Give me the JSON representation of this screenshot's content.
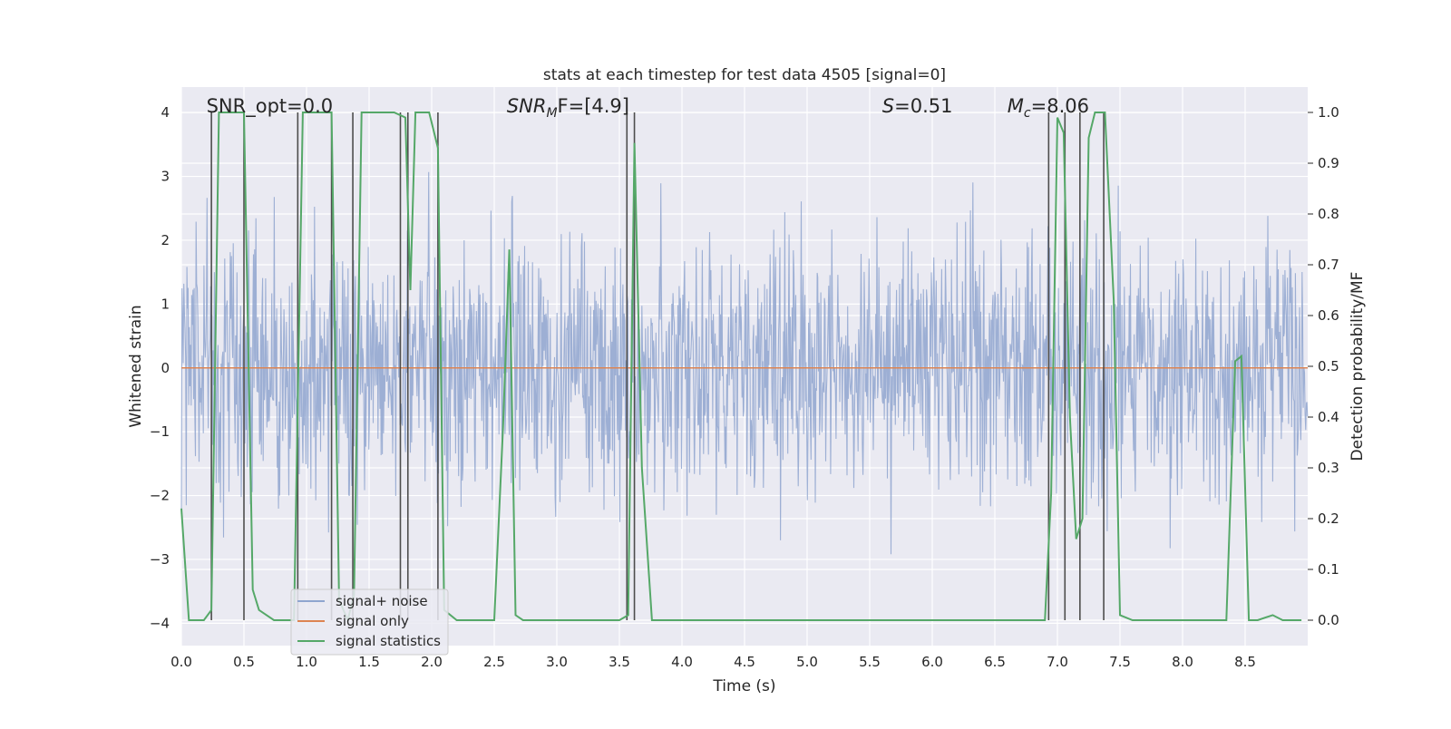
{
  "chart_data": {
    "type": "line",
    "title": "stats at each timestep for test data 4505 [signal=0]",
    "xlabel": "Time (s)",
    "ylabel_left": "Whitened strain",
    "ylabel_right": "Detection probability/MF",
    "xlim": [
      0.0,
      9.0
    ],
    "ylim_left": [
      -4.35,
      4.4
    ],
    "ylim_right": [
      -0.05,
      1.05
    ],
    "x_ticks": [
      0.0,
      0.5,
      1.0,
      1.5,
      2.0,
      2.5,
      3.0,
      3.5,
      4.0,
      4.5,
      5.0,
      5.5,
      6.0,
      6.5,
      7.0,
      7.5,
      8.0,
      8.5
    ],
    "x_tick_labels": [
      "0.0",
      "0.5",
      "1.0",
      "1.5",
      "2.0",
      "2.5",
      "3.0",
      "3.5",
      "4.0",
      "4.5",
      "5.0",
      "5.5",
      "6.0",
      "6.5",
      "7.0",
      "7.5",
      "8.0",
      "8.5"
    ],
    "y_left_ticks": [
      -4,
      -3,
      -2,
      -1,
      0,
      1,
      2,
      3,
      4
    ],
    "y_left_tick_labels": [
      "−4",
      "−3",
      "−2",
      "−1",
      "0",
      "1",
      "2",
      "3",
      "4"
    ],
    "y_right_ticks": [
      0.0,
      0.1,
      0.2,
      0.3,
      0.4,
      0.5,
      0.6,
      0.7,
      0.8,
      0.9,
      1.0
    ],
    "y_right_tick_labels": [
      "0.0",
      "0.1",
      "0.2",
      "0.3",
      "0.4",
      "0.5",
      "0.6",
      "0.7",
      "0.8",
      "0.9",
      "1.0"
    ],
    "grid": true,
    "legend_position": "lower-left",
    "annotations": [
      {
        "text": "SNR_opt=0.0",
        "x": 0.2
      },
      {
        "text": "SNR",
        "sub": "M",
        "rest": "F=[4.9]",
        "italic": true,
        "x": 2.6
      },
      {
        "text": "S",
        "rest": "=0.51",
        "italic": true,
        "x": 5.6
      },
      {
        "text": "M",
        "sub": "c",
        "rest": "=8.06",
        "italic": true,
        "x": 6.6
      }
    ],
    "series": [
      {
        "name": "signal+ noise",
        "axis": "left",
        "color": "#8fa5cf",
        "envelope": {
          "sample_step": 0.00488,
          "typical_abs": 1.6,
          "peak_max": 3.95,
          "peak_min": -3.9
        }
      },
      {
        "name": "signal only",
        "axis": "left",
        "color": "#dd8452",
        "x": [
          0.0,
          9.0
        ],
        "y": [
          0.0,
          0.0
        ]
      },
      {
        "name": "signal statistics",
        "axis": "right",
        "color": "#55a868",
        "x": [
          0.0,
          0.06,
          0.18,
          0.24,
          0.3,
          0.5,
          0.57,
          0.62,
          0.74,
          0.9,
          0.97,
          1.02,
          1.2,
          1.26,
          1.33,
          1.38,
          1.44,
          1.7,
          1.79,
          1.83,
          1.87,
          1.98,
          2.05,
          2.1,
          2.2,
          2.5,
          2.57,
          2.62,
          2.67,
          2.73,
          3.0,
          3.5,
          3.57,
          3.62,
          3.68,
          3.76,
          4.0,
          6.9,
          6.95,
          7.0,
          7.05,
          7.1,
          7.15,
          7.2,
          7.25,
          7.3,
          7.38,
          7.45,
          7.5,
          7.6,
          8.0,
          8.35,
          8.42,
          8.47,
          8.53,
          8.6,
          8.72,
          8.8,
          8.95
        ],
        "y": [
          0.22,
          0.0,
          0.0,
          0.02,
          1.0,
          1.0,
          0.06,
          0.02,
          0.0,
          0.0,
          1.0,
          1.0,
          1.0,
          0.04,
          0.0,
          0.05,
          1.0,
          1.0,
          0.99,
          0.65,
          1.0,
          1.0,
          0.93,
          0.02,
          0.0,
          0.0,
          0.38,
          0.73,
          0.01,
          0.0,
          0.0,
          0.0,
          0.01,
          0.94,
          0.3,
          0.0,
          0.0,
          0.0,
          0.25,
          0.99,
          0.96,
          0.4,
          0.16,
          0.2,
          0.95,
          1.0,
          1.0,
          0.63,
          0.01,
          0.0,
          0.0,
          0.0,
          0.51,
          0.52,
          0.0,
          0.0,
          0.01,
          0.0,
          0.0
        ]
      }
    ],
    "vertical_lines": {
      "color": "#4d4d4d",
      "x": [
        0.24,
        0.5,
        0.93,
        1.2,
        1.37,
        1.75,
        1.81,
        2.05,
        3.56,
        3.62,
        6.93,
        7.06,
        7.18,
        7.37
      ]
    }
  }
}
